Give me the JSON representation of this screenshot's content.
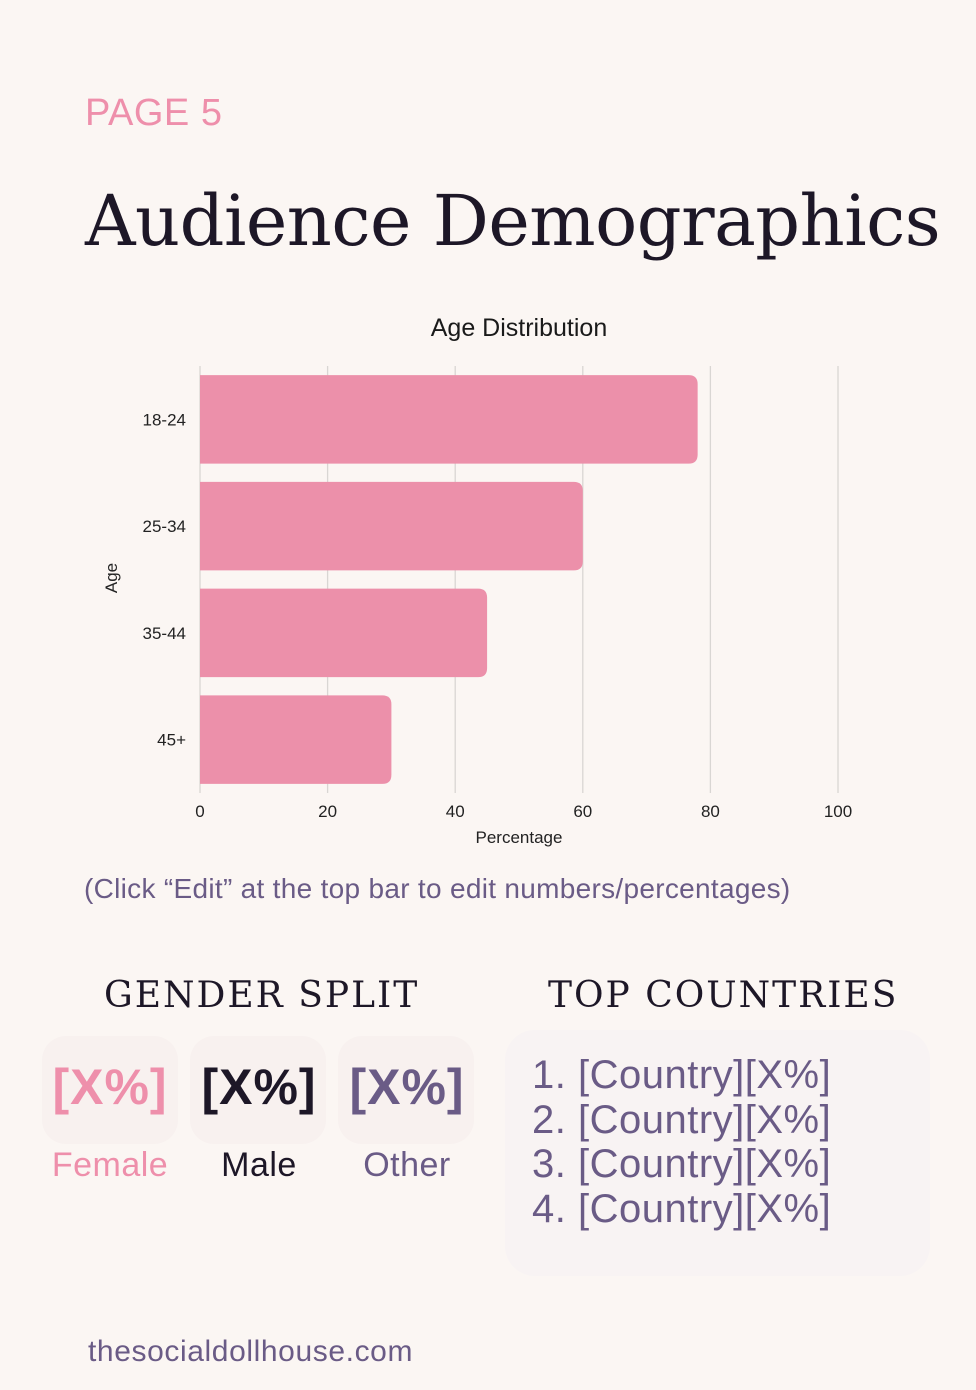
{
  "page_label": "PAGE 5",
  "title": "Audience Demographics",
  "chart_data": {
    "type": "bar",
    "orientation": "horizontal",
    "title": "Age Distribution",
    "xlabel": "Percentage",
    "ylabel": "Age",
    "categories": [
      "18-24",
      "25-34",
      "35-44",
      "45+"
    ],
    "values": [
      78,
      60,
      45,
      30
    ],
    "xlim": [
      0,
      100
    ],
    "xticks": [
      "0",
      "20",
      "40",
      "60",
      "80",
      "100"
    ],
    "grid": "vertical",
    "bar_color": "#ec90aa"
  },
  "note": "(Click “Edit” at the top bar to edit numbers/percentages)",
  "gender_split": {
    "heading": "GENDER SPLIT",
    "items": [
      {
        "value": "[X%]",
        "label": "Female",
        "color": "#ee8fab"
      },
      {
        "value": "[X%]",
        "label": "Male",
        "color": "#1d1727"
      },
      {
        "value": "[X%]",
        "label": "Other",
        "color": "#6a5b86"
      }
    ]
  },
  "top_countries": {
    "heading": "TOP COUNTRIES",
    "items": [
      "1.  [Country][X%]",
      "2. [Country][X%]",
      "3. [Country][X%]",
      "4. [Country][X%]"
    ]
  },
  "footer": "thesocialdollhouse.com"
}
